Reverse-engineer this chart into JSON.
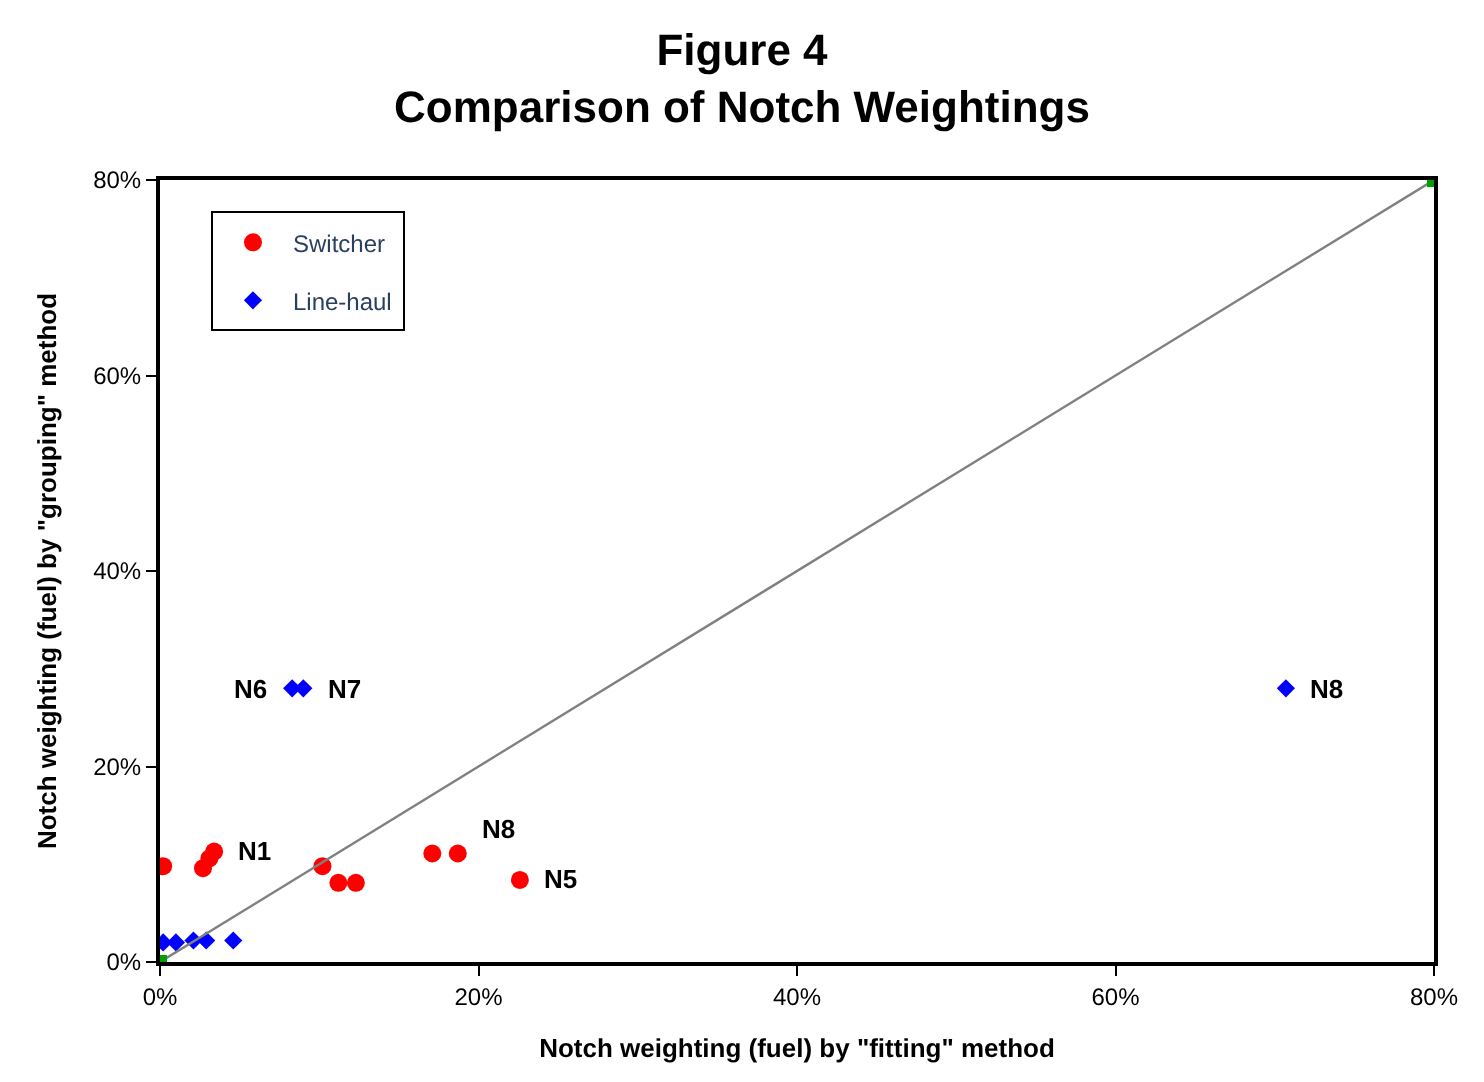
{
  "chart_data": {
    "type": "scatter",
    "title": "Figure 4\nComparison of Notch Weightings",
    "xlabel": "Notch weighting (fuel) by \"fitting\" method",
    "ylabel": "Notch weighting (fuel) by \"grouping\" method",
    "series": [
      {
        "name": "Switcher",
        "color": "#ff0000",
        "marker": "circle",
        "x": [
          0.2,
          2.7,
          3.1,
          3.4,
          10.2,
          11.2,
          12.3,
          17.1,
          18.7,
          22.6
        ],
        "values": [
          9.8,
          9.6,
          10.6,
          11.3,
          9.8,
          8.1,
          8.1,
          11.1,
          11.1,
          8.4
        ]
      },
      {
        "name": "Line-haul",
        "color": "#0000ff",
        "marker": "diamond",
        "x": [
          0.2,
          1.0,
          2.1,
          2.9,
          4.6,
          8.3,
          9.0,
          70.7
        ],
        "values": [
          2.0,
          2.0,
          2.2,
          2.2,
          2.2,
          28,
          28,
          28
        ]
      },
      {
        "type": "line",
        "color": "#808080",
        "x": [
          0,
          80
        ],
        "values": [
          0,
          80
        ]
      },
      {
        "color": "#00a000",
        "marker": "square",
        "x": [
          0,
          80
        ],
        "values": [
          0,
          80
        ]
      }
    ],
    "annotations": [
      {
        "text": "N1",
        "x": 3.4,
        "y": 11.3
      },
      {
        "text": "N8",
        "x": 18.7,
        "y": 11.1
      },
      {
        "text": "N5",
        "x": 22.6,
        "y": 8.4
      },
      {
        "text": "N6",
        "x": 8.3,
        "y": 28
      },
      {
        "text": "N7",
        "x": 9.0,
        "y": 28
      },
      {
        "text": "N8",
        "x": 70.7,
        "y": 28
      }
    ],
    "xlim": [
      0,
      80
    ],
    "ylim": [
      0,
      80
    ],
    "xticks": [
      {
        "value": 0,
        "label": "0%"
      },
      {
        "value": 20,
        "label": "20%"
      },
      {
        "value": 40,
        "label": "40%"
      },
      {
        "value": 60,
        "label": "60%"
      },
      {
        "value": 80,
        "label": "80%"
      }
    ],
    "yticks": [
      {
        "value": 0,
        "label": "0%"
      },
      {
        "value": 20,
        "label": "20%"
      },
      {
        "value": 40,
        "label": "40%"
      },
      {
        "value": 60,
        "label": "60%"
      },
      {
        "value": 80,
        "label": "80%"
      }
    ],
    "legend": "top left"
  }
}
